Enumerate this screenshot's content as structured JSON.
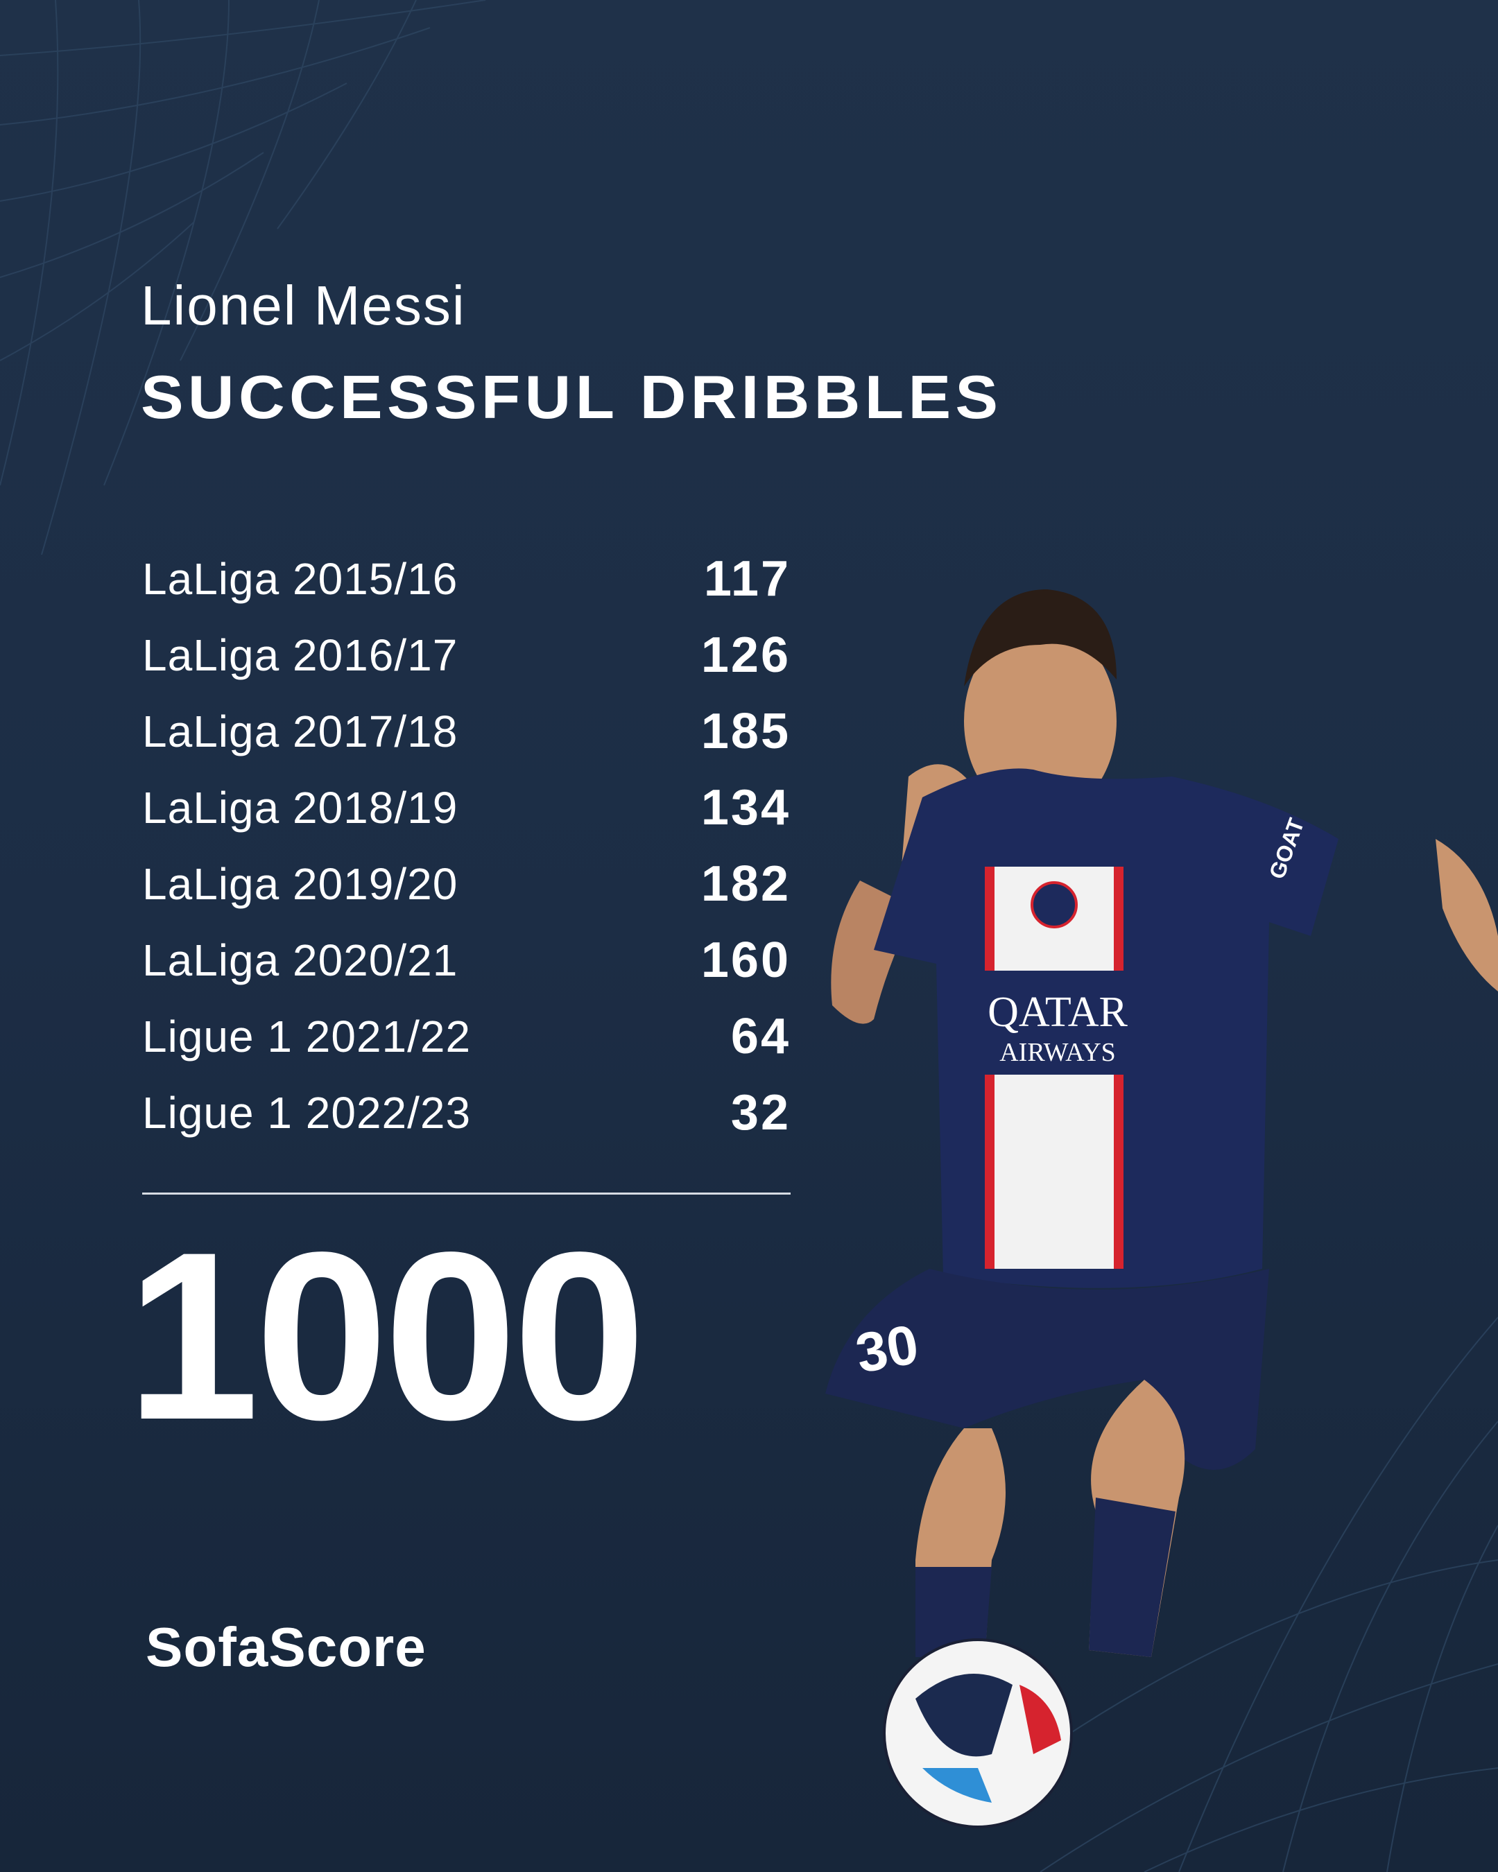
{
  "header": {
    "player_name": "Lionel Messi",
    "stat_title": "SUCCESSFUL DRIBBLES"
  },
  "seasons": [
    {
      "label": "LaLiga 2015/16",
      "value": "117"
    },
    {
      "label": "LaLiga 2016/17",
      "value": "126"
    },
    {
      "label": "LaLiga 2017/18",
      "value": "185"
    },
    {
      "label": "LaLiga 2018/19",
      "value": "134"
    },
    {
      "label": "LaLiga 2019/20",
      "value": "182"
    },
    {
      "label": "LaLiga 2020/21",
      "value": "160"
    },
    {
      "label": "Ligue 1 2021/22",
      "value": "64"
    },
    {
      "label": "Ligue 1 2022/23",
      "value": "32"
    }
  ],
  "total": "1000",
  "brand": {
    "logo_text": "SofaScore"
  },
  "photo": {
    "jersey_sponsor": "QATAR AIRWAYS",
    "jersey_number": "30",
    "sleeve_text": "GOAT"
  },
  "colors": {
    "background": "#1e3049",
    "text": "#ffffff",
    "jersey_navy": "#1d2a5c",
    "jersey_red": "#d6232e"
  }
}
